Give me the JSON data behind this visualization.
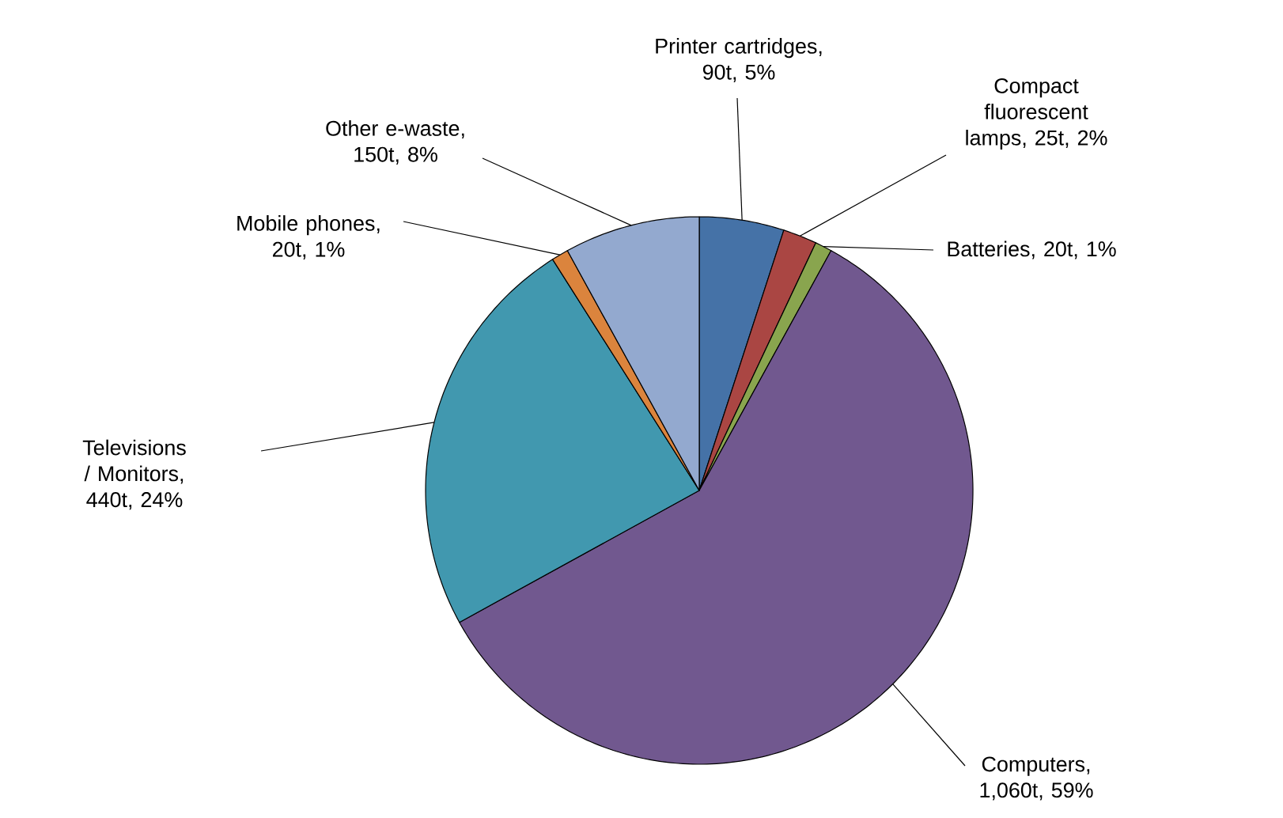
{
  "chart_data": {
    "type": "pie",
    "categories": [
      "Printer cartridges, 90t, 5%",
      "Compact fluorescent lamps, 25t, 2%",
      "Batteries, 20t, 1%",
      "Computers, 1,060t, 59%",
      "Televisions / Monitors, 440t, 24%",
      "Mobile phones, 20t, 1%",
      "Other e-waste, 150t, 8%"
    ],
    "values": [
      5,
      2,
      1,
      59,
      24,
      1,
      8
    ],
    "colors": [
      "#4572a7",
      "#aa4643",
      "#89a54e",
      "#71588f",
      "#4198af",
      "#db843d",
      "#93a9cf"
    ]
  }
}
